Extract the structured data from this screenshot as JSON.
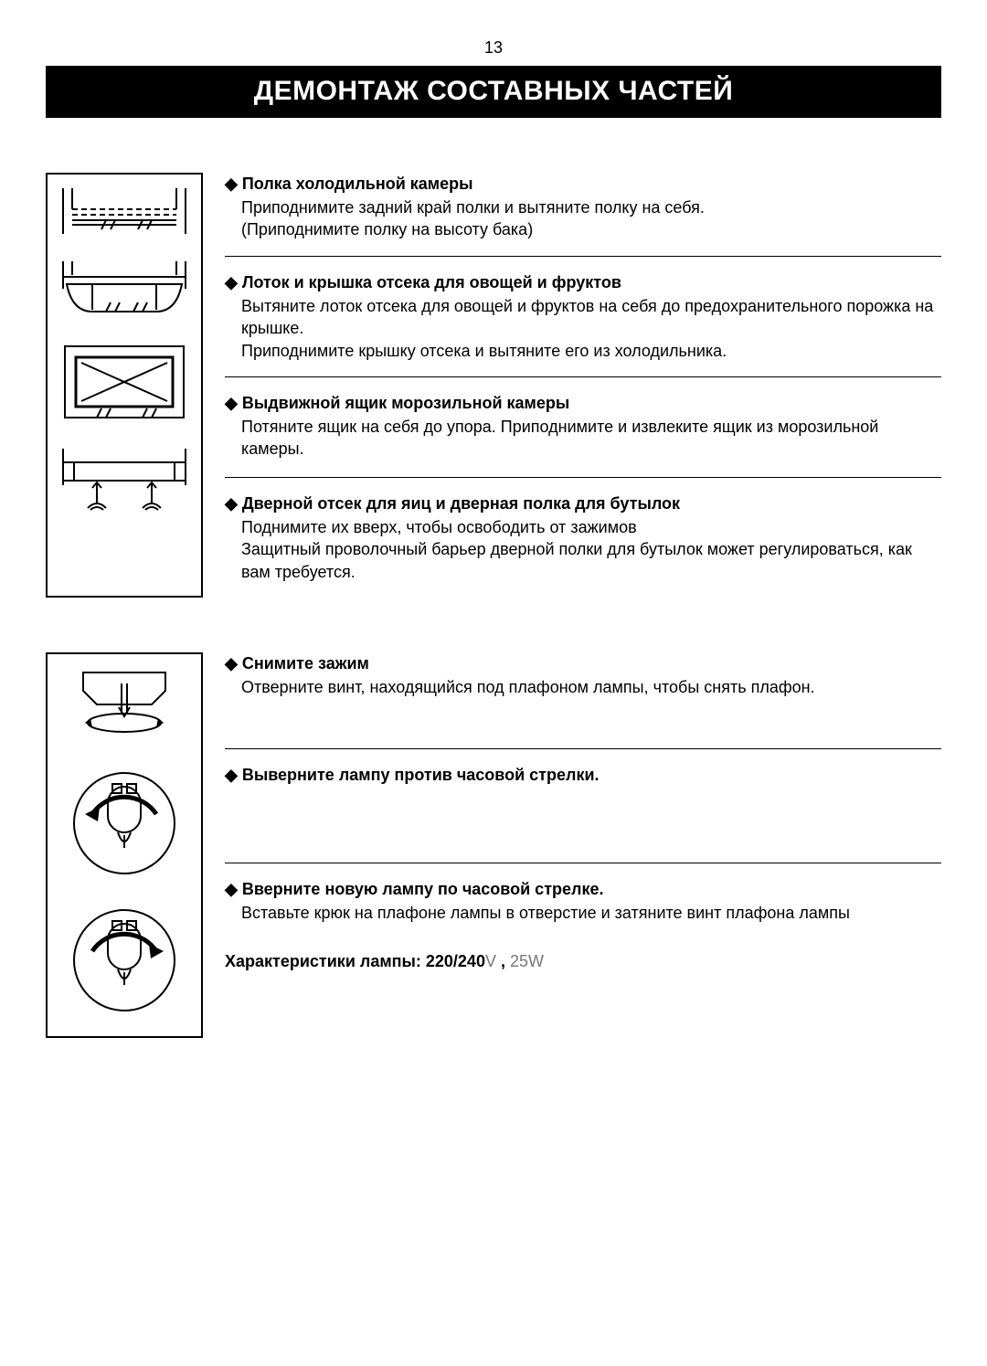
{
  "page_number": "13",
  "title": "ДЕМОНТАЖ СОСТАВНЫХ ЧАСТЕЙ",
  "group1": {
    "s1": {
      "title": "Полка холодильной камеры",
      "body": "Приподнимите задний край полки и вытяните полку на себя.\n(Приподнимите полку на высоту бака)"
    },
    "s2": {
      "title": "Лоток и крышка отсека для овощей и фруктов",
      "body": "Вытяните лоток отсека для овощей и фруктов на себя до предохранительного порожка на крышке.\nПриподнимите крышку отсека и вытяните его из холодильника."
    },
    "s3": {
      "title": "Выдвижной ящик морозильной камеры",
      "body": "Потяните ящик на себя до упора. Приподнимите и извлеките ящик из морозильной камеры."
    },
    "s4": {
      "title": "Дверной отсек для яиц и дверная полка для бутылок",
      "body": "Поднимите их вверх, чтобы освободить от зажимов\nЗащитный проволочный барьер дверной полки для бутылок может регулироваться, как вам требуется."
    }
  },
  "group2": {
    "s1": {
      "title": "Снимите зажим",
      "body": "Отверните винт, находящийся под плафоном лампы, чтобы снять плафон."
    },
    "s2": {
      "title": "Выверните лампу против часовой стрелки.",
      "body": ""
    },
    "s3": {
      "title": "Вверните новую лампу по часовой стрелке.",
      "body": "Вставьте крюк на плафоне лампы в отверстие и затяните винт плафона лампы"
    },
    "spec": {
      "label": "Характеристики лампы: 220/240",
      "unit1": "V",
      "comma": " , ",
      "value": "25",
      "unit2": "W"
    }
  },
  "colors": {
    "black": "#000000",
    "white": "#ffffff",
    "grey": "#777777"
  }
}
